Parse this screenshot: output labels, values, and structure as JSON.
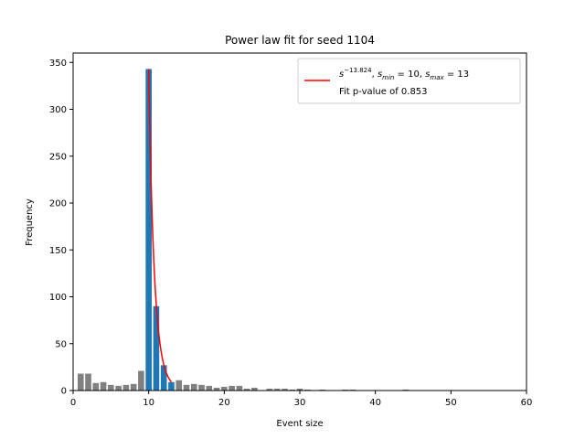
{
  "chart_data": {
    "type": "bar",
    "title": "Power law fit for seed 1104",
    "xlabel": "Event size",
    "ylabel": "Frequency",
    "xlim": [
      0,
      60
    ],
    "ylim": [
      0,
      360
    ],
    "xticks": [
      0,
      10,
      20,
      30,
      40,
      50,
      60
    ],
    "yticks": [
      0,
      50,
      100,
      150,
      200,
      250,
      300,
      350
    ],
    "grid": false,
    "legend_placement": "top-right",
    "colors": {
      "out_of_range": "#808080",
      "in_range": "#1f77b4",
      "fit": "#ff0000",
      "axis": "#000000"
    },
    "series": [
      {
        "kind": "bar",
        "color": "#808080",
        "x": [
          1,
          2,
          3,
          4,
          5,
          6,
          7,
          8,
          9,
          14,
          15,
          16,
          17,
          18,
          19,
          20,
          21,
          22,
          23,
          24,
          26,
          27,
          28,
          29,
          30,
          31,
          33,
          36,
          37,
          44
        ],
        "values": [
          18,
          18,
          8,
          9,
          6,
          5,
          6,
          7,
          21,
          11,
          6,
          7,
          6,
          5,
          3,
          4,
          5,
          5,
          2,
          3,
          2,
          2,
          2,
          1,
          2,
          1,
          1,
          1,
          1,
          1
        ]
      },
      {
        "kind": "bar",
        "color": "#1f77b4",
        "x": [
          10,
          11,
          12,
          13
        ],
        "values": [
          343,
          90,
          27,
          9
        ]
      },
      {
        "kind": "line",
        "color": "#ff0000",
        "exponent": -13.824,
        "smin": 10,
        "smax": 13,
        "x_start": 10,
        "x_end": 13,
        "y_at_start": 343
      }
    ],
    "legend": {
      "entry_base": "s",
      "entry_exponent": "−13.824",
      "entry_sep1": ", ",
      "smin_sym": "s",
      "smin_sub": "min",
      "smin_val": " = 10, ",
      "smax_sym": "s",
      "smax_sub": "max",
      "smax_val": " = 13",
      "line2": "Fit p-value of 0.853"
    }
  }
}
